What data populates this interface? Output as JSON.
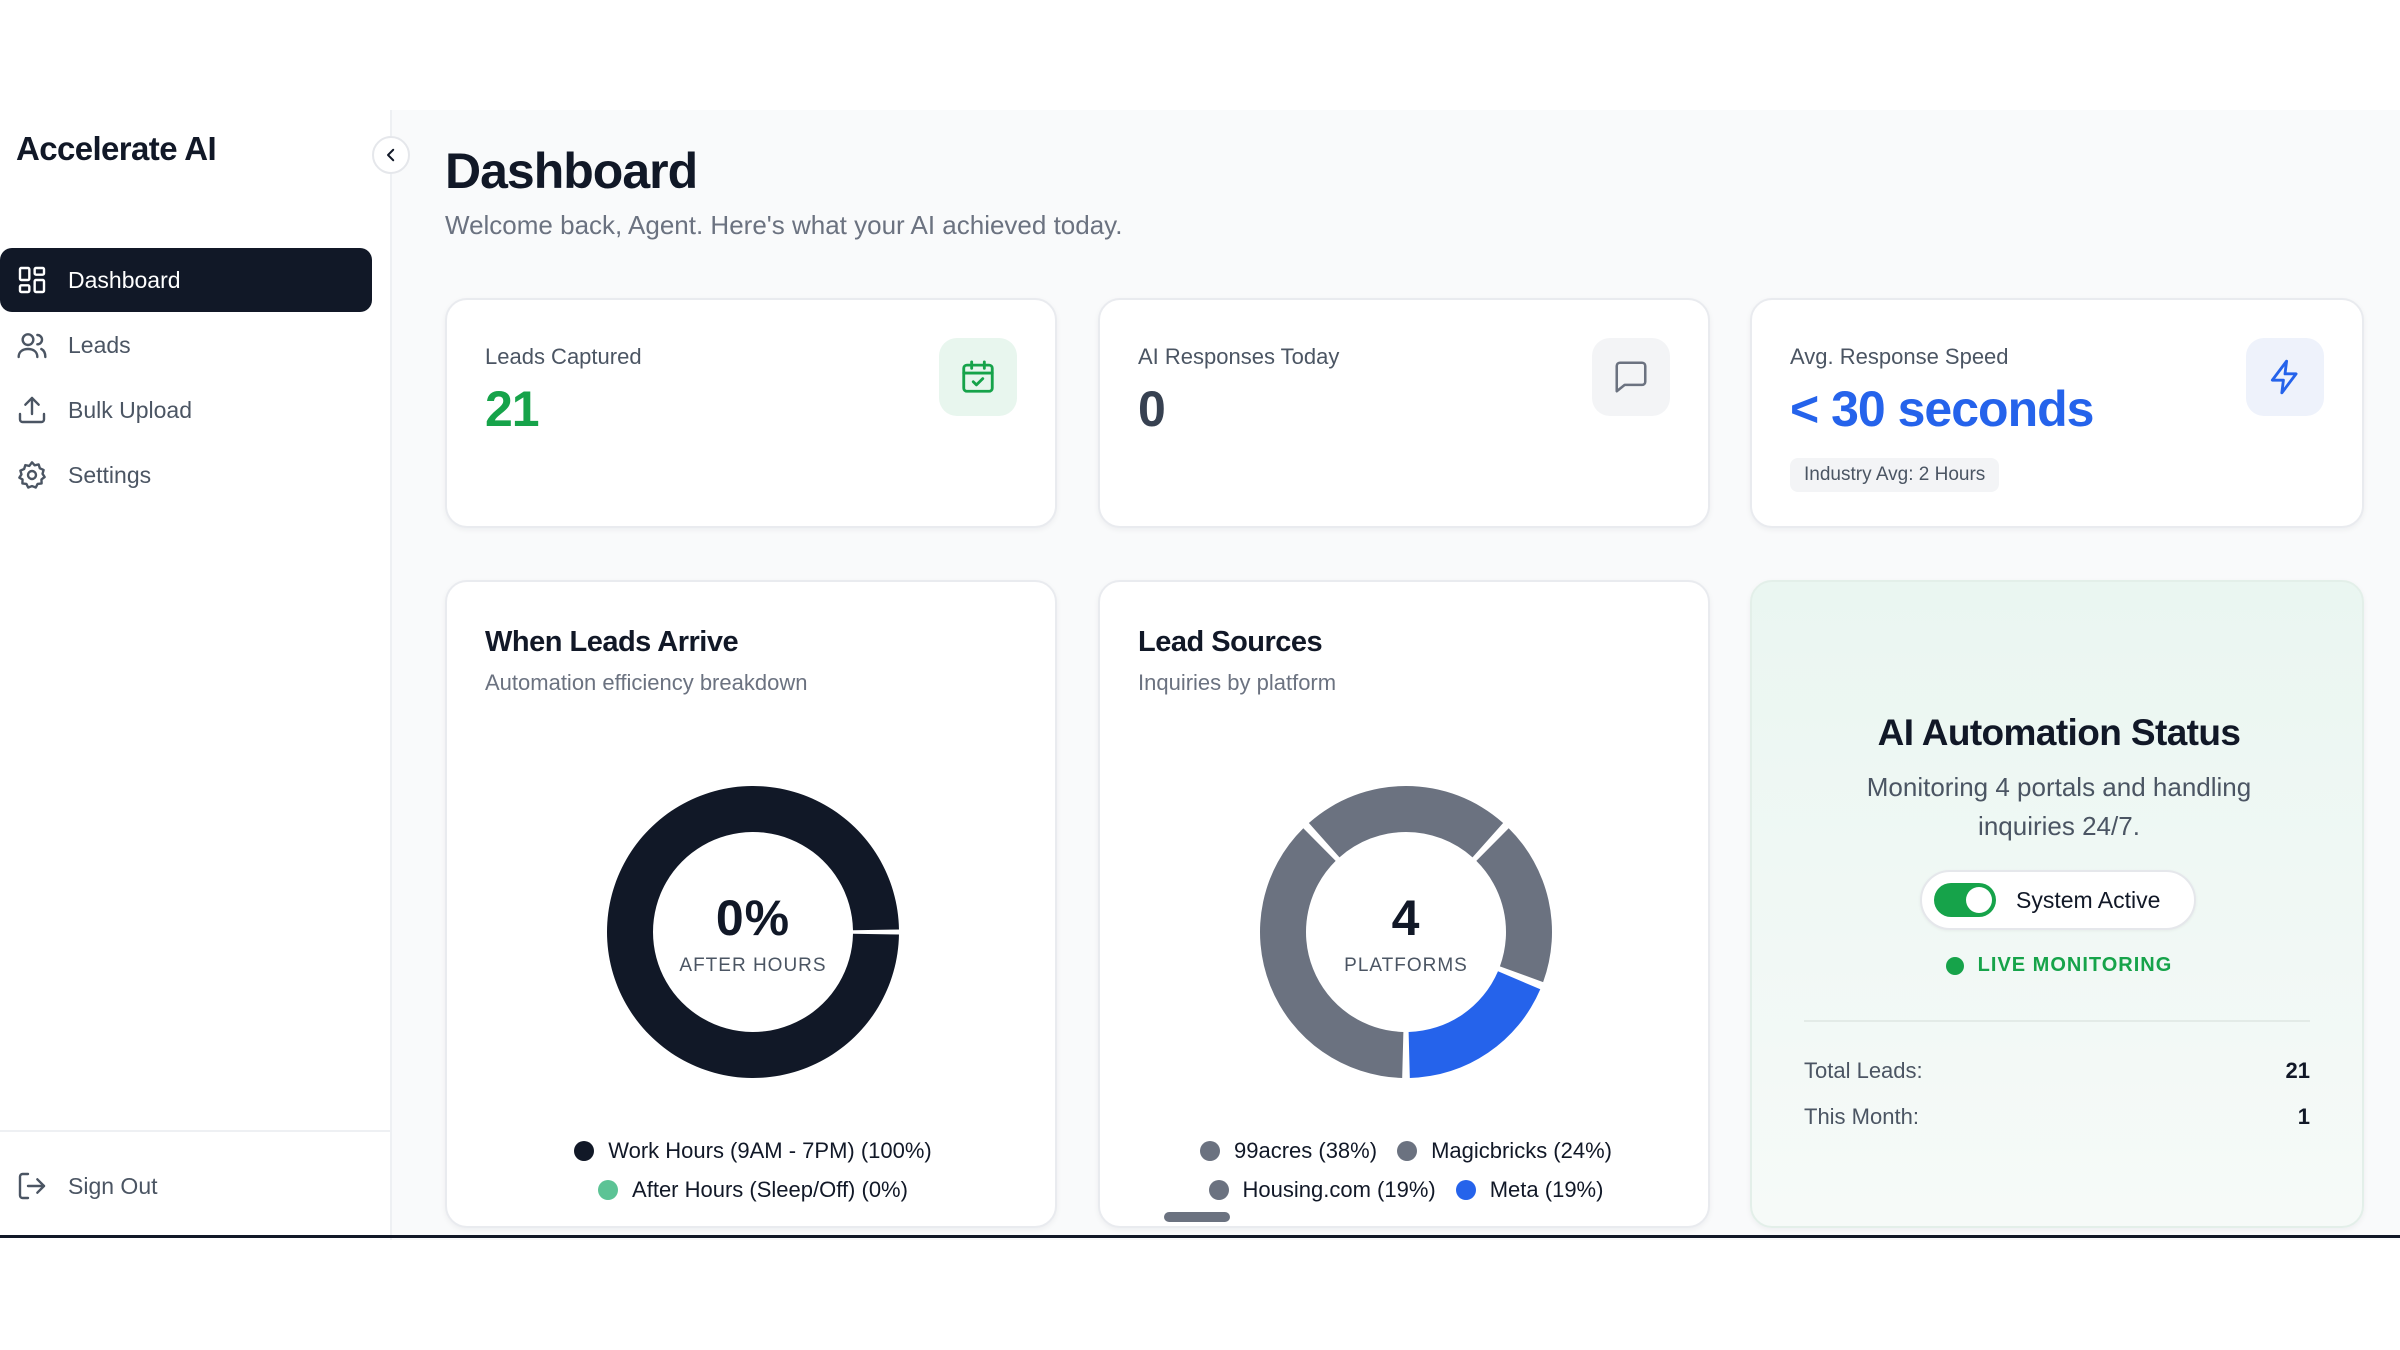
{
  "sidebar": {
    "brand": "Accelerate AI",
    "items": [
      {
        "label": "Dashboard",
        "icon": "grid-icon",
        "active": true
      },
      {
        "label": "Leads",
        "icon": "users-icon"
      },
      {
        "label": "Bulk Upload",
        "icon": "upload-icon"
      },
      {
        "label": "Settings",
        "icon": "gear-icon"
      }
    ],
    "signout": "Sign Out"
  },
  "header": {
    "title": "Dashboard",
    "subtitle": "Welcome back, Agent. Here's what your AI achieved today."
  },
  "stats": [
    {
      "label": "Leads Captured",
      "value": "21",
      "icon": "calendar-check-icon",
      "color": "#16a34a",
      "icon_bg": "#e8f6ee"
    },
    {
      "label": "AI Responses Today",
      "value": "0",
      "icon": "chat-icon",
      "color": "#374151",
      "icon_bg": "#f3f4f6"
    },
    {
      "label": "Avg. Response Speed",
      "value": "< 30 seconds",
      "icon": "bolt-icon",
      "color": "#2563eb",
      "icon_bg": "#eef2fb",
      "badge": "Industry Avg: 2 Hours"
    }
  ],
  "charts": {
    "when": {
      "title": "When Leads Arrive",
      "subtitle": "Automation efficiency breakdown",
      "center_value": "0%",
      "center_label": "AFTER HOURS",
      "legend": [
        {
          "label": "Work Hours (9AM - 7PM) (100%)",
          "color": "#111827"
        },
        {
          "label": "After Hours (Sleep/Off) (0%)",
          "color": "#5cc395"
        }
      ]
    },
    "sources": {
      "title": "Lead Sources",
      "subtitle": "Inquiries by platform",
      "center_value": "4",
      "center_label": "PLATFORMS",
      "legend": [
        {
          "label": "99acres (38%)",
          "color": "#6b7280"
        },
        {
          "label": "Magicbricks (24%)",
          "color": "#6b7280"
        },
        {
          "label": "Housing.com (19%)",
          "color": "#6b7280"
        },
        {
          "label": "Meta (19%)",
          "color": "#2563eb"
        }
      ]
    }
  },
  "chart_data": [
    {
      "type": "pie",
      "title": "When Leads Arrive",
      "categories": [
        "Work Hours (9AM - 7PM)",
        "After Hours (Sleep/Off)"
      ],
      "values": [
        100,
        0
      ],
      "colors": [
        "#111827",
        "#5cc395"
      ]
    },
    {
      "type": "pie",
      "title": "Lead Sources",
      "categories": [
        "99acres",
        "Magicbricks",
        "Housing.com",
        "Meta"
      ],
      "values": [
        38,
        24,
        19,
        19
      ],
      "colors": [
        "#6b7280",
        "#6b7280",
        "#6b7280",
        "#2563eb"
      ]
    }
  ],
  "status": {
    "title": "AI Automation Status",
    "description": "Monitoring 4 portals and handling inquiries 24/7.",
    "toggle_label": "System Active",
    "live": "LIVE MONITORING",
    "total_leads_label": "Total Leads:",
    "total_leads_value": "21",
    "this_month_label": "This Month:",
    "this_month_value": "1"
  }
}
